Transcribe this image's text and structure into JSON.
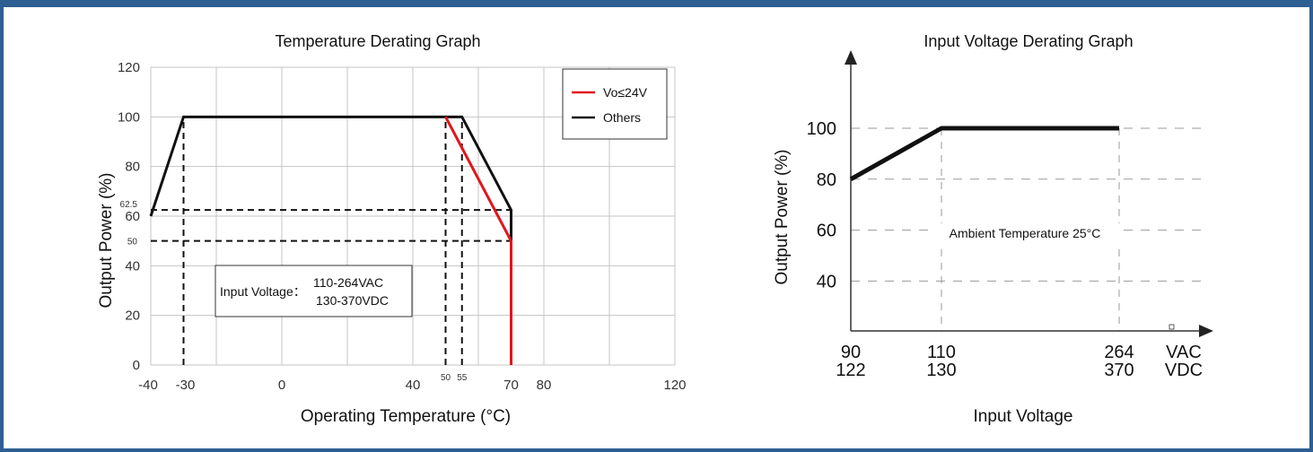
{
  "chart_data": [
    {
      "type": "line",
      "title": "Temperature Derating Graph",
      "xlabel": "Operating Temperature (°C)",
      "ylabel": "Output Power (%)",
      "xlim": [
        -40,
        120
      ],
      "ylim": [
        0,
        120
      ],
      "x_tick_labels": [
        "-40",
        "0",
        "40",
        "80",
        "120"
      ],
      "y_tick_labels": [
        "0",
        "20",
        "40",
        "60",
        "80",
        "100",
        "120"
      ],
      "extra_x_tick_labels": [
        {
          "value": -30,
          "label": "-30",
          "size": "normal"
        },
        {
          "value": 50,
          "label": "50",
          "size": "small"
        },
        {
          "value": 55,
          "label": "55",
          "size": "small"
        },
        {
          "value": 70,
          "label": "70",
          "size": "normal"
        }
      ],
      "extra_y_tick_labels": [
        {
          "value": 62.5,
          "label": "62.5"
        },
        {
          "value": 50,
          "label": "50"
        }
      ],
      "grid": true,
      "legend_position": "top-right",
      "series": [
        {
          "name": "Vo≤24V",
          "color": "#e0161b",
          "x": [
            50,
            70,
            70
          ],
          "y": [
            100,
            50,
            0
          ]
        },
        {
          "name": "Others",
          "color": "#111111",
          "x": [
            -40,
            -30,
            55,
            70,
            70
          ],
          "y": [
            60,
            100,
            100,
            62.5,
            0
          ]
        }
      ],
      "reference_lines": [
        {
          "axis": "x",
          "value": -30,
          "from": 0,
          "to": 100
        },
        {
          "axis": "x",
          "value": 50,
          "from": 0,
          "to": 100
        },
        {
          "axis": "x",
          "value": 55,
          "from": 0,
          "to": 100
        },
        {
          "axis": "y",
          "value": 62.5,
          "from": -40,
          "to": 70
        },
        {
          "axis": "y",
          "value": 50,
          "from": -40,
          "to": 70
        }
      ],
      "annotation": {
        "label": "Input Voltage：",
        "line1": "110-264VAC",
        "line2": "130-370VDC"
      }
    },
    {
      "type": "line",
      "title": "Input Voltage Derating Graph",
      "xlabel": "Input Voltage",
      "ylabel": "Output Power (%)",
      "y_tick_labels": [
        "40",
        "60",
        "80",
        "100"
      ],
      "x_categories": [
        {
          "top": "90",
          "bottom": "122"
        },
        {
          "top": "110",
          "bottom": "130"
        },
        {
          "top": "264",
          "bottom": "370"
        },
        {
          "top": "VAC",
          "bottom": "VDC"
        }
      ],
      "series": [
        {
          "color": "#111111",
          "points": [
            {
              "vac": 90,
              "vdc": 122,
              "y": 80
            },
            {
              "vac": 110,
              "vdc": 130,
              "y": 100
            },
            {
              "vac": 264,
              "vdc": 370,
              "y": 100
            }
          ]
        }
      ],
      "annotation": "Ambient Temperature 25°C",
      "grid": "dashed"
    }
  ]
}
